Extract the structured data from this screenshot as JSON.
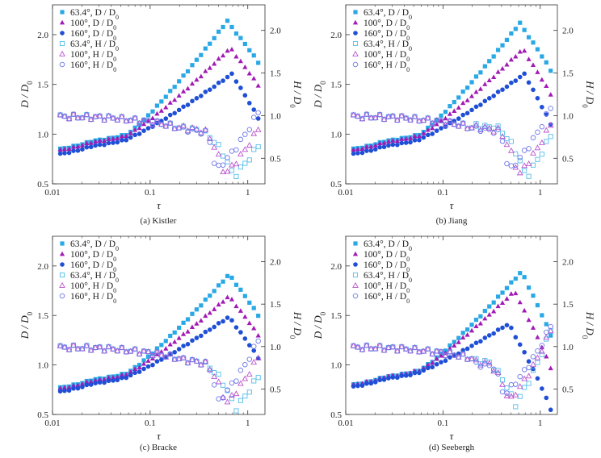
{
  "colors": {
    "s634": "#29a8e6",
    "s100": "#a21ab5",
    "s160": "#1f4fd6",
    "h634": "#55bde9",
    "h100": "#bb52cf",
    "h160": "#6f78e8"
  },
  "legend_labels": {
    "s634": "63.4°, D / D",
    "s100": "100°, D / D",
    "s160": "160°, D / D",
    "h634": "63.4°, H / D",
    "h100": "100°, H / D",
    "h160": "160°, H / D",
    "subscript": "0"
  },
  "chart_data": [
    {
      "type": "scatter",
      "caption": "(a)  Kistler",
      "xlabel": "τ",
      "ylabel_left": "D / D",
      "ylabel_right": "H / D",
      "label_subscript": "0",
      "x_scale": "log",
      "xlim": [
        0.01,
        1.5
      ],
      "ylim_left": [
        0.5,
        2.3
      ],
      "ylim_right": [
        0.2,
        2.3
      ],
      "x_ticks": [
        "0.01",
        "0.1",
        "1"
      ],
      "y_ticks_left": [
        "0.5",
        "1.0",
        "1.5",
        "2.0"
      ],
      "y_ticks_right": [
        "0.5",
        "1.0",
        "1.5",
        "2.0"
      ],
      "legend_position": "top-left",
      "series": [
        {
          "name": "63.4°, D/D0",
          "axis": "left",
          "marker": "square-filled",
          "color_key": "s634",
          "kind": "spreadD",
          "peak": 2.14,
          "tpk": 0.62,
          "end": 1.72,
          "low": 0.85
        },
        {
          "name": "100°, D/D0",
          "axis": "left",
          "marker": "triangle-filled",
          "color_key": "s100",
          "kind": "spreadD",
          "peak": 1.87,
          "tpk": 0.67,
          "end": 1.49,
          "low": 0.84
        },
        {
          "name": "160°, D/D0",
          "axis": "left",
          "marker": "circle-filled",
          "color_key": "s160",
          "kind": "spreadD",
          "peak": 1.61,
          "tpk": 0.7,
          "end": 1.16,
          "low": 0.8
        },
        {
          "name": "63.4°, H/D0",
          "axis": "right",
          "marker": "square-open",
          "color_key": "h634",
          "kind": "heightH",
          "bumpT": 0.33,
          "bump": 0.82,
          "minT": 0.72,
          "min": 0.28,
          "end": 0.65
        },
        {
          "name": "100°, H/D0",
          "axis": "right",
          "marker": "triangle-open",
          "color_key": "h100",
          "kind": "heightH",
          "bumpT": 0.35,
          "bump": 0.83,
          "minT": 0.58,
          "min": 0.3,
          "end": 0.85
        },
        {
          "name": "160°, H/D0",
          "axis": "right",
          "marker": "circle-open",
          "color_key": "h160",
          "kind": "heightH",
          "bumpT": 0.38,
          "bump": 0.8,
          "minT": 0.47,
          "min": 0.35,
          "end": 1.05
        }
      ]
    },
    {
      "type": "scatter",
      "caption": "(b)  Jiang",
      "xlabel": "τ",
      "ylabel_left": "D / D",
      "ylabel_right": "H / D",
      "label_subscript": "0",
      "x_scale": "log",
      "xlim": [
        0.01,
        1.5
      ],
      "ylim_left": [
        0.5,
        2.3
      ],
      "ylim_right": [
        0.2,
        2.3
      ],
      "x_ticks": [
        "0.01",
        "0.1",
        "1"
      ],
      "y_ticks_left": [
        "0.5",
        "1.0",
        "1.5",
        "2.0"
      ],
      "y_ticks_right": [
        "0.5",
        "1.0",
        "1.5",
        "2.0"
      ],
      "legend_position": "top-left",
      "series": [
        {
          "name": "63.4°, D/D0",
          "axis": "left",
          "marker": "square-filled",
          "color_key": "s634",
          "kind": "spreadD",
          "peak": 2.12,
          "tpk": 0.62,
          "end": 1.64,
          "low": 0.85
        },
        {
          "name": "100°, D/D0",
          "axis": "left",
          "marker": "triangle-filled",
          "color_key": "s100",
          "kind": "spreadD",
          "peak": 1.86,
          "tpk": 0.67,
          "end": 1.4,
          "low": 0.84
        },
        {
          "name": "160°, D/D0",
          "axis": "left",
          "marker": "circle-filled",
          "color_key": "s160",
          "kind": "spreadD",
          "peak": 1.61,
          "tpk": 0.7,
          "end": 1.1,
          "low": 0.8
        },
        {
          "name": "63.4°, H/D0",
          "axis": "right",
          "marker": "square-open",
          "color_key": "h634",
          "kind": "heightH",
          "bumpT": 0.33,
          "bump": 0.88,
          "minT": 0.72,
          "min": 0.27,
          "end": 0.77
        },
        {
          "name": "100°, H/D0",
          "axis": "right",
          "marker": "triangle-open",
          "color_key": "h100",
          "kind": "heightH",
          "bumpT": 0.35,
          "bump": 0.85,
          "minT": 0.6,
          "min": 0.3,
          "end": 0.9
        },
        {
          "name": "160°, H/D0",
          "axis": "right",
          "marker": "circle-open",
          "color_key": "h160",
          "kind": "heightH",
          "bumpT": 0.38,
          "bump": 0.82,
          "minT": 0.47,
          "min": 0.34,
          "end": 1.1
        }
      ]
    },
    {
      "type": "scatter",
      "caption": "(c)  Bracke",
      "xlabel": "τ",
      "ylabel_left": "D / D",
      "ylabel_right": "H / D",
      "label_subscript": "0",
      "x_scale": "log",
      "xlim": [
        0.01,
        1.5
      ],
      "ylim_left": [
        0.5,
        2.3
      ],
      "ylim_right": [
        0.2,
        2.3
      ],
      "x_ticks": [
        "0.01",
        "0.1",
        "1"
      ],
      "y_ticks_left": [
        "0.5",
        "1.0",
        "1.5",
        "2.0"
      ],
      "y_ticks_right": [
        "0.5",
        "1.0",
        "1.5",
        "2.0"
      ],
      "legend_position": "top-left",
      "series": [
        {
          "name": "63.4°, D/D0",
          "axis": "left",
          "marker": "square-filled",
          "color_key": "s634",
          "kind": "spreadD",
          "peak": 1.92,
          "tpk": 0.65,
          "end": 1.5,
          "low": 0.77
        },
        {
          "name": "100°, D/D0",
          "axis": "left",
          "marker": "triangle-filled",
          "color_key": "s100",
          "kind": "spreadD",
          "peak": 1.7,
          "tpk": 0.65,
          "end": 1.3,
          "low": 0.76
        },
        {
          "name": "160°, D/D0",
          "axis": "left",
          "marker": "circle-filled",
          "color_key": "s160",
          "kind": "spreadD",
          "peak": 1.49,
          "tpk": 0.65,
          "end": 1.07,
          "low": 0.73
        },
        {
          "name": "63.4°, H/D0",
          "axis": "right",
          "marker": "square-open",
          "color_key": "h634",
          "kind": "heightH",
          "bumpT": 0.35,
          "bump": 0.8,
          "minT": 0.75,
          "min": 0.26,
          "end": 0.65
        },
        {
          "name": "100°, H/D0",
          "axis": "right",
          "marker": "triangle-open",
          "color_key": "h100",
          "kind": "heightH",
          "bumpT": 0.36,
          "bump": 0.8,
          "minT": 0.6,
          "min": 0.32,
          "end": 0.88
        },
        {
          "name": "160°, H/D0",
          "axis": "right",
          "marker": "circle-open",
          "color_key": "h160",
          "kind": "heightH",
          "bumpT": 0.38,
          "bump": 0.8,
          "minT": 0.5,
          "min": 0.35,
          "end": 1.08
        }
      ]
    },
    {
      "type": "scatter",
      "caption": "(d)  Seebergh",
      "xlabel": "τ",
      "ylabel_left": "D / D",
      "ylabel_right": "H / D",
      "label_subscript": "0",
      "x_scale": "log",
      "xlim": [
        0.01,
        1.5
      ],
      "ylim_left": [
        0.5,
        2.3
      ],
      "ylim_right": [
        0.2,
        2.3
      ],
      "x_ticks": [
        "0.01",
        "0.1",
        "1"
      ],
      "y_ticks_left": [
        "0.5",
        "1.0",
        "1.5",
        "2.0"
      ],
      "y_ticks_right": [
        "0.5",
        "1.0",
        "1.5",
        "2.0"
      ],
      "legend_position": "top-left",
      "series": [
        {
          "name": "63.4°, D/D0",
          "axis": "left",
          "marker": "square-filled",
          "color_key": "s634",
          "kind": "spreadD",
          "peak": 1.95,
          "tpk": 0.65,
          "end": 1.3,
          "low": 0.8
        },
        {
          "name": "100°, D/D0",
          "axis": "left",
          "marker": "triangle-filled",
          "color_key": "s100",
          "kind": "spreadD",
          "peak": 1.75,
          "tpk": 0.55,
          "end": 0.97,
          "low": 0.8
        },
        {
          "name": "160°, D/D0",
          "axis": "left",
          "marker": "circle-filled",
          "color_key": "s160",
          "kind": "spreadD",
          "peak": 1.42,
          "tpk": 0.48,
          "end": 0.55,
          "low": 0.78
        },
        {
          "name": "63.4°, H/D0",
          "axis": "right",
          "marker": "square-open",
          "color_key": "h634",
          "kind": "heightH",
          "bumpT": 0.3,
          "bump": 0.78,
          "minT": 0.55,
          "min": 0.3,
          "end": 1.2
        },
        {
          "name": "100°, H/D0",
          "axis": "right",
          "marker": "triangle-open",
          "color_key": "h100",
          "kind": "heightH",
          "bumpT": 0.32,
          "bump": 0.75,
          "minT": 0.48,
          "min": 0.35,
          "end": 1.2
        },
        {
          "name": "160°, H/D0",
          "axis": "right",
          "marker": "circle-open",
          "color_key": "h160",
          "kind": "heightH",
          "bumpT": 0.35,
          "bump": 0.7,
          "minT": 0.42,
          "min": 0.42,
          "end": 1.25
        }
      ]
    }
  ]
}
